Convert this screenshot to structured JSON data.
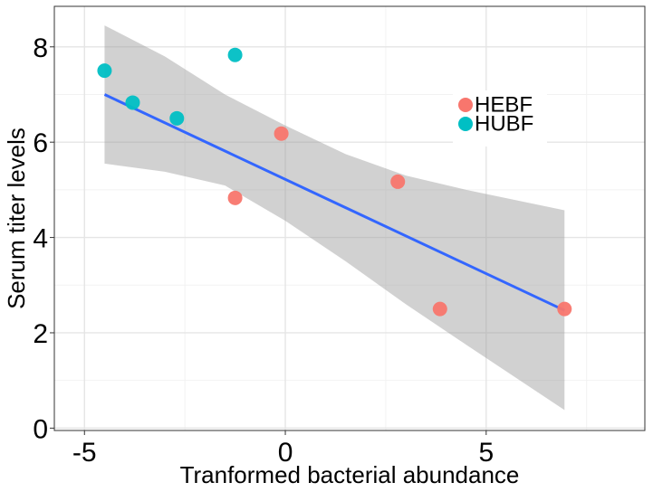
{
  "chart_data": {
    "type": "scatter",
    "title": "",
    "xlabel": "Tranformed bacterial abundance",
    "ylabel": "Serum titer levels",
    "xlim": [
      -5.75,
      8.95
    ],
    "ylim": [
      -0.05,
      8.85
    ],
    "x_ticks": [
      -5,
      0,
      5
    ],
    "y_ticks": [
      0,
      2,
      4,
      6,
      8
    ],
    "grid": true,
    "legend_position": "top-right",
    "series": [
      {
        "name": "HEBF",
        "color": "#F8766D",
        "points": [
          {
            "x": -1.25,
            "y": 4.83
          },
          {
            "x": -0.1,
            "y": 6.18
          },
          {
            "x": 2.8,
            "y": 5.17
          },
          {
            "x": 3.85,
            "y": 2.5
          },
          {
            "x": 6.95,
            "y": 2.5
          }
        ]
      },
      {
        "name": "HUBF",
        "color": "#00BFC4",
        "points": [
          {
            "x": -4.5,
            "y": 7.5
          },
          {
            "x": -3.8,
            "y": 6.83
          },
          {
            "x": -2.7,
            "y": 6.5
          },
          {
            "x": -1.25,
            "y": 7.83
          }
        ]
      }
    ],
    "regression": {
      "color": "#3366FF",
      "band_color": "#999999",
      "x": [
        -4.5,
        6.95
      ],
      "y": [
        7.0,
        2.47
      ],
      "band_x": [
        -4.5,
        -3.0,
        -1.5,
        0.0,
        1.5,
        3.0,
        4.5,
        6.95
      ],
      "band_lower": [
        5.55,
        5.38,
        5.09,
        4.35,
        3.5,
        2.6,
        1.75,
        0.38
      ],
      "band_upper": [
        8.45,
        7.8,
        7.0,
        6.35,
        5.75,
        5.3,
        5.0,
        4.57
      ]
    }
  }
}
